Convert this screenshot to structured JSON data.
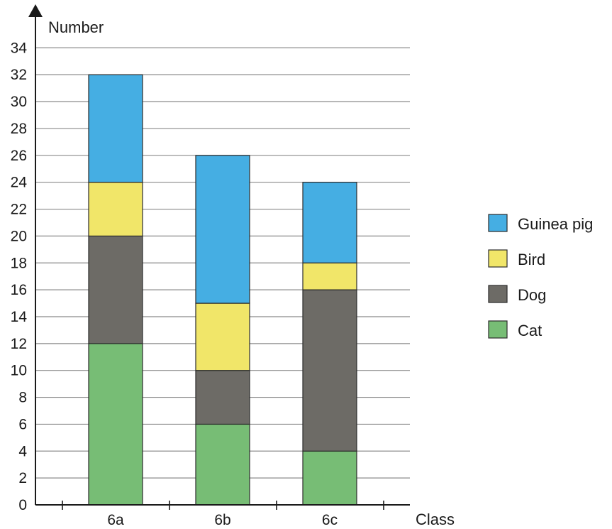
{
  "chart_data": {
    "type": "bar",
    "stacked": true,
    "xlabel": "Class",
    "ylabel": "Number",
    "ylim": [
      0,
      34
    ],
    "yticks": [
      0,
      2,
      4,
      6,
      8,
      10,
      12,
      14,
      16,
      18,
      20,
      22,
      24,
      26,
      28,
      30,
      32,
      34
    ],
    "grid": true,
    "legend_position": "right",
    "categories": [
      "6a",
      "6b",
      "6c"
    ],
    "series": [
      {
        "name": "Cat",
        "color": "#77bd75",
        "values": [
          12,
          6,
          4
        ]
      },
      {
        "name": "Dog",
        "color": "#6d6b66",
        "values": [
          8,
          4,
          12
        ]
      },
      {
        "name": "Bird",
        "color": "#f1e669",
        "values": [
          4,
          5,
          2
        ]
      },
      {
        "name": "Guinea pig",
        "color": "#45aee3",
        "values": [
          8,
          11,
          6
        ]
      }
    ],
    "legend_order": [
      "Guinea pig",
      "Bird",
      "Dog",
      "Cat"
    ]
  }
}
